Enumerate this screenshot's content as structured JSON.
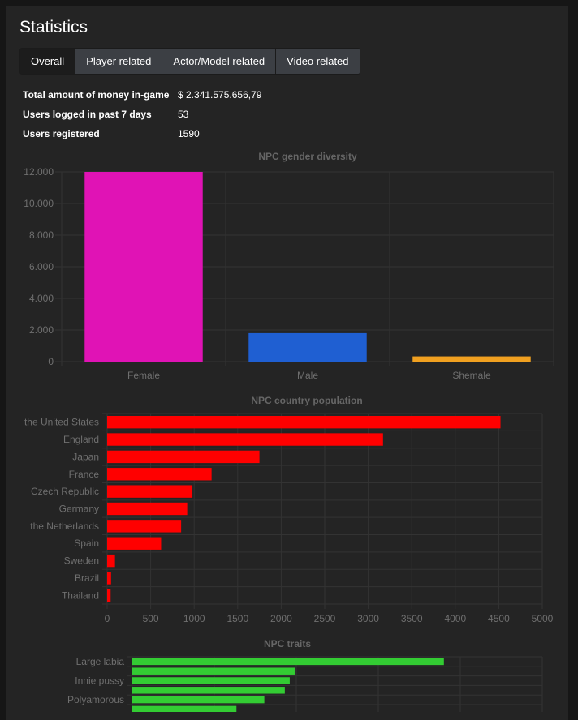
{
  "page": {
    "title": "Statistics",
    "tabs": [
      "Overall",
      "Player related",
      "Actor/Model related",
      "Video related"
    ],
    "active_tab": "Overall"
  },
  "stats": [
    {
      "label": "Total amount of money in-game",
      "value": "$ 2.341.575.656,79"
    },
    {
      "label": "Users logged in past 7 days",
      "value": "53"
    },
    {
      "label": "Users registered",
      "value": "1590"
    }
  ],
  "chart_data": [
    {
      "type": "bar",
      "title": "NPC gender diversity",
      "categories": [
        "Female",
        "Male",
        "Shemale"
      ],
      "values": [
        12000,
        1800,
        330
      ],
      "colors": [
        "#e013b5",
        "#1f5fd2",
        "#f0a020"
      ],
      "ylim": [
        0,
        12000
      ],
      "yticks": [
        0,
        2000,
        4000,
        6000,
        8000,
        10000,
        12000
      ],
      "ytick_labels": [
        "0",
        "2.000",
        "4.000",
        "6.000",
        "8.000",
        "10.000",
        "12.000"
      ],
      "grid": true,
      "legend": "none"
    },
    {
      "type": "bar",
      "orientation": "horizontal",
      "title": "NPC country population",
      "categories": [
        "the United States",
        "England",
        "Japan",
        "France",
        "Czech Republic",
        "Germany",
        "the Netherlands",
        "Spain",
        "Sweden",
        "Brazil",
        "Thailand"
      ],
      "values": [
        4520,
        3170,
        1750,
        1200,
        980,
        920,
        850,
        620,
        90,
        45,
        40
      ],
      "color": "#ff0000",
      "xlim": [
        0,
        5000
      ],
      "xticks": [
        0,
        500,
        1000,
        1500,
        2000,
        2500,
        3000,
        3500,
        4000,
        4500,
        5000
      ],
      "grid": true,
      "legend": "none"
    },
    {
      "type": "bar",
      "orientation": "horizontal",
      "title": "NPC traits",
      "categories": [
        "Large labia",
        "",
        "Innie pussy",
        "",
        "Polyamorous",
        ""
      ],
      "values": [
        3800,
        1980,
        1920,
        1860,
        1610,
        1270
      ],
      "color": "#33cc33",
      "xlim": [
        0,
        5000
      ],
      "grid": true,
      "legend": "none"
    }
  ]
}
